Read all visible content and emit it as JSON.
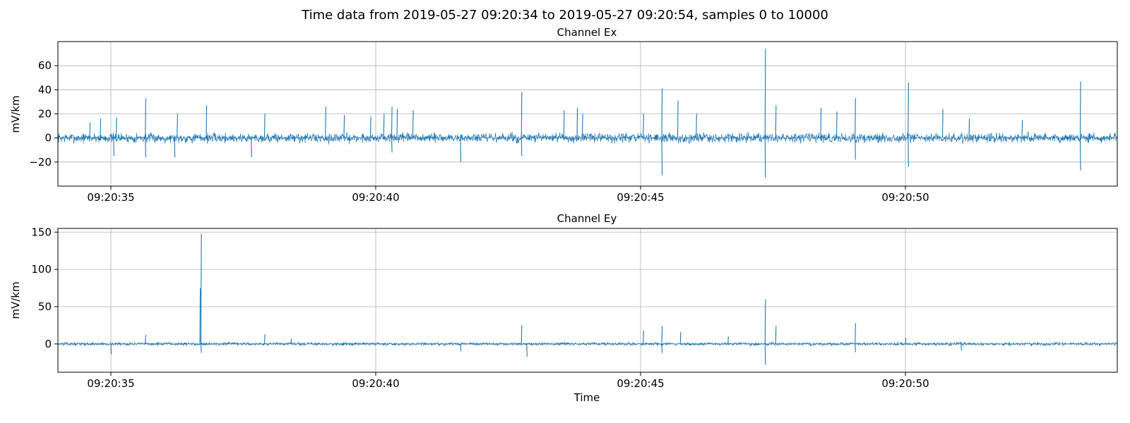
{
  "suptitle": "Time data from 2019-05-27 09:20:34 to 2019-05-27 09:20:54, samples 0 to 10000",
  "chart_data": [
    {
      "type": "line",
      "title": "Channel Ex",
      "xlabel": "",
      "ylabel": "mV/km",
      "x_range": [
        "09:20:34.00",
        "09:20:54.00"
      ],
      "xlim_seconds": [
        34.0,
        54.0
      ],
      "xticks": [
        35,
        40,
        45,
        50
      ],
      "xtick_labels": [
        "09:20:35",
        "09:20:40",
        "09:20:45",
        "09:20:50"
      ],
      "ylim": [
        -40,
        80
      ],
      "yticks": [
        -20,
        0,
        20,
        40,
        60
      ],
      "ytick_labels": [
        "−20",
        "0",
        "20",
        "40",
        "60"
      ],
      "grid": true,
      "series": [
        {
          "color": "#1f77b4",
          "baseline": 0,
          "noise": 3,
          "peaks": [
            {
              "t": 34.6,
              "v": 13
            },
            {
              "t": 34.8,
              "v": 16
            },
            {
              "t": 35.05,
              "v": -15
            },
            {
              "t": 35.1,
              "v": 17
            },
            {
              "t": 35.65,
              "v": 33
            },
            {
              "t": 35.65,
              "v": -16
            },
            {
              "t": 36.2,
              "v": -16
            },
            {
              "t": 36.25,
              "v": 20
            },
            {
              "t": 36.8,
              "v": 27
            },
            {
              "t": 37.9,
              "v": 20
            },
            {
              "t": 37.65,
              "v": -16
            },
            {
              "t": 39.05,
              "v": 26
            },
            {
              "t": 39.4,
              "v": 19
            },
            {
              "t": 39.9,
              "v": 18
            },
            {
              "t": 40.15,
              "v": 20
            },
            {
              "t": 40.3,
              "v": -12
            },
            {
              "t": 40.3,
              "v": 26
            },
            {
              "t": 40.4,
              "v": 24
            },
            {
              "t": 40.7,
              "v": 23
            },
            {
              "t": 41.6,
              "v": -20
            },
            {
              "t": 42.75,
              "v": 38
            },
            {
              "t": 42.75,
              "v": -15
            },
            {
              "t": 43.55,
              "v": 23
            },
            {
              "t": 43.8,
              "v": 25
            },
            {
              "t": 43.9,
              "v": 20
            },
            {
              "t": 45.05,
              "v": 20
            },
            {
              "t": 45.4,
              "v": 41
            },
            {
              "t": 45.4,
              "v": -31
            },
            {
              "t": 45.7,
              "v": 31
            },
            {
              "t": 46.05,
              "v": 20
            },
            {
              "t": 47.35,
              "v": 74
            },
            {
              "t": 47.35,
              "v": -33
            },
            {
              "t": 47.55,
              "v": 27
            },
            {
              "t": 48.4,
              "v": 25
            },
            {
              "t": 48.7,
              "v": 22
            },
            {
              "t": 49.05,
              "v": 33
            },
            {
              "t": 49.05,
              "v": -18
            },
            {
              "t": 50.05,
              "v": 46
            },
            {
              "t": 50.05,
              "v": -24
            },
            {
              "t": 50.7,
              "v": 24
            },
            {
              "t": 51.2,
              "v": 16
            },
            {
              "t": 52.2,
              "v": 15
            },
            {
              "t": 53.3,
              "v": 47
            },
            {
              "t": 53.3,
              "v": -27
            }
          ]
        }
      ]
    },
    {
      "type": "line",
      "title": "Channel Ey",
      "xlabel": "Time",
      "ylabel": "mV/km",
      "x_range": [
        "09:20:34.00",
        "09:20:54.00"
      ],
      "xlim_seconds": [
        34.0,
        54.0
      ],
      "xticks": [
        35,
        40,
        45,
        50
      ],
      "xtick_labels": [
        "09:20:35",
        "09:20:40",
        "09:20:45",
        "09:20:50"
      ],
      "ylim": [
        -38,
        155
      ],
      "yticks": [
        0,
        50,
        100,
        150
      ],
      "ytick_labels": [
        "0",
        "50",
        "100",
        "150"
      ],
      "grid": true,
      "series": [
        {
          "color": "#1f77b4",
          "baseline": 0,
          "noise": 1.6,
          "peaks": [
            {
              "t": 35.0,
              "v": -14
            },
            {
              "t": 35.65,
              "v": 12
            },
            {
              "t": 36.7,
              "v": 148
            },
            {
              "t": 36.68,
              "v": 75
            },
            {
              "t": 36.7,
              "v": -12
            },
            {
              "t": 37.9,
              "v": 13
            },
            {
              "t": 38.4,
              "v": 7
            },
            {
              "t": 41.6,
              "v": -10
            },
            {
              "t": 42.75,
              "v": 25
            },
            {
              "t": 42.85,
              "v": -17
            },
            {
              "t": 45.05,
              "v": 18
            },
            {
              "t": 45.4,
              "v": 24
            },
            {
              "t": 45.4,
              "v": -12
            },
            {
              "t": 45.75,
              "v": 16
            },
            {
              "t": 46.65,
              "v": 10
            },
            {
              "t": 47.35,
              "v": 60
            },
            {
              "t": 47.35,
              "v": -28
            },
            {
              "t": 47.55,
              "v": 24
            },
            {
              "t": 49.05,
              "v": 28
            },
            {
              "t": 49.05,
              "v": -11
            },
            {
              "t": 50.0,
              "v": 8
            },
            {
              "t": 51.05,
              "v": -9
            }
          ]
        }
      ]
    }
  ]
}
